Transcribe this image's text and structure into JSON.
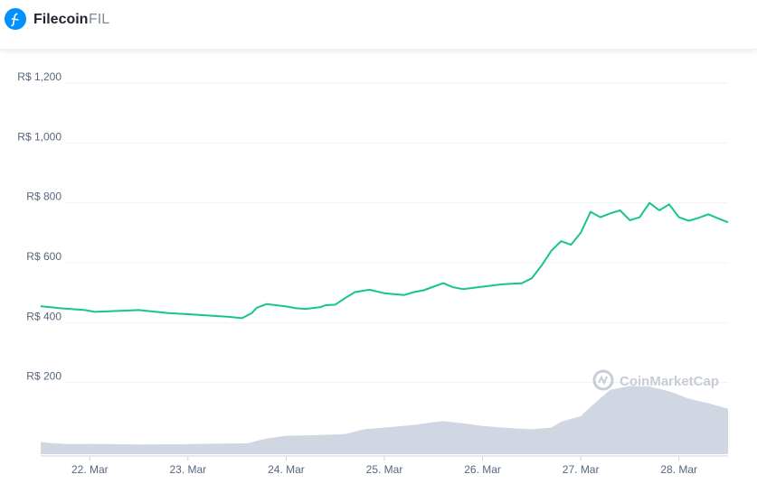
{
  "header": {
    "name": "Filecoin",
    "symbol": "FIL"
  },
  "watermark": "CoinMarketCap",
  "icons": {
    "logo": "filecoin-logo-icon",
    "watermark": "coinmarketcap-logo-icon"
  },
  "colors": {
    "price_line": "#16c784",
    "volume_fill": "#d1d6e3",
    "grid": "#eff2f5",
    "logo_bg": "#0090ff"
  },
  "chart_data": {
    "type": "line",
    "currency_prefix": "R$",
    "y_ticks": [
      "R$ 200",
      "R$ 400",
      "R$ 600",
      "R$ 800",
      "R$ 1,000",
      "R$ 1,200"
    ],
    "y_tick_values": [
      200,
      400,
      600,
      800,
      1000,
      1200
    ],
    "ylim": [
      0,
      1200
    ],
    "x_ticks": [
      "22. Mar",
      "23. Mar",
      "24. Mar",
      "25. Mar",
      "26. Mar",
      "27. Mar",
      "28. Mar"
    ],
    "x_tick_values": [
      22,
      23,
      24,
      25,
      26,
      27,
      28
    ],
    "xlim": [
      21.5,
      28.5
    ],
    "grid": true,
    "legend": "none",
    "series": [
      {
        "values": [
          [
            21.5,
            455
          ],
          [
            21.7,
            448
          ],
          [
            21.95,
            442
          ],
          [
            22.05,
            436
          ],
          [
            22.2,
            438
          ],
          [
            22.5,
            442
          ],
          [
            22.8,
            432
          ],
          [
            23.0,
            428
          ],
          [
            23.2,
            424
          ],
          [
            23.4,
            420
          ],
          [
            23.55,
            415
          ],
          [
            23.65,
            432
          ],
          [
            23.7,
            450
          ],
          [
            23.8,
            462
          ],
          [
            24.0,
            454
          ],
          [
            24.1,
            448
          ],
          [
            24.2,
            446
          ],
          [
            24.35,
            452
          ],
          [
            24.4,
            458
          ],
          [
            24.5,
            460
          ],
          [
            24.6,
            482
          ],
          [
            24.7,
            502
          ],
          [
            24.85,
            510
          ],
          [
            25.0,
            498
          ],
          [
            25.2,
            492
          ],
          [
            25.3,
            502
          ],
          [
            25.4,
            508
          ],
          [
            25.5,
            520
          ],
          [
            25.6,
            532
          ],
          [
            25.7,
            518
          ],
          [
            25.8,
            512
          ],
          [
            26.0,
            520
          ],
          [
            26.2,
            528
          ],
          [
            26.4,
            532
          ],
          [
            26.5,
            548
          ],
          [
            26.6,
            590
          ],
          [
            26.7,
            640
          ],
          [
            26.8,
            672
          ],
          [
            26.9,
            660
          ],
          [
            27.0,
            700
          ],
          [
            27.1,
            770
          ],
          [
            27.2,
            752
          ],
          [
            27.3,
            765
          ],
          [
            27.4,
            775
          ],
          [
            27.5,
            742
          ],
          [
            27.6,
            752
          ],
          [
            27.7,
            800
          ],
          [
            27.8,
            775
          ],
          [
            27.9,
            795
          ],
          [
            28.0,
            752
          ],
          [
            28.1,
            740
          ],
          [
            28.2,
            750
          ],
          [
            28.3,
            762
          ],
          [
            28.4,
            748
          ],
          [
            28.5,
            735
          ]
        ]
      },
      {
        "name": "volume",
        "values": [
          [
            21.5,
            45
          ],
          [
            21.6,
            41
          ],
          [
            21.8,
            37
          ],
          [
            22.0,
            38
          ],
          [
            22.5,
            36
          ],
          [
            23.0,
            37
          ],
          [
            23.3,
            39
          ],
          [
            23.6,
            40
          ],
          [
            23.8,
            58
          ],
          [
            24.0,
            68
          ],
          [
            24.3,
            70
          ],
          [
            24.6,
            74
          ],
          [
            24.8,
            92
          ],
          [
            25.0,
            98
          ],
          [
            25.3,
            108
          ],
          [
            25.5,
            118
          ],
          [
            25.6,
            122
          ],
          [
            25.8,
            114
          ],
          [
            26.0,
            104
          ],
          [
            26.3,
            96
          ],
          [
            26.5,
            92
          ],
          [
            26.7,
            98
          ],
          [
            26.8,
            120
          ],
          [
            27.0,
            140
          ],
          [
            27.1,
            175
          ],
          [
            27.3,
            238
          ],
          [
            27.5,
            252
          ],
          [
            27.7,
            250
          ],
          [
            27.9,
            232
          ],
          [
            28.1,
            205
          ],
          [
            28.3,
            188
          ],
          [
            28.5,
            168
          ]
        ]
      }
    ]
  }
}
